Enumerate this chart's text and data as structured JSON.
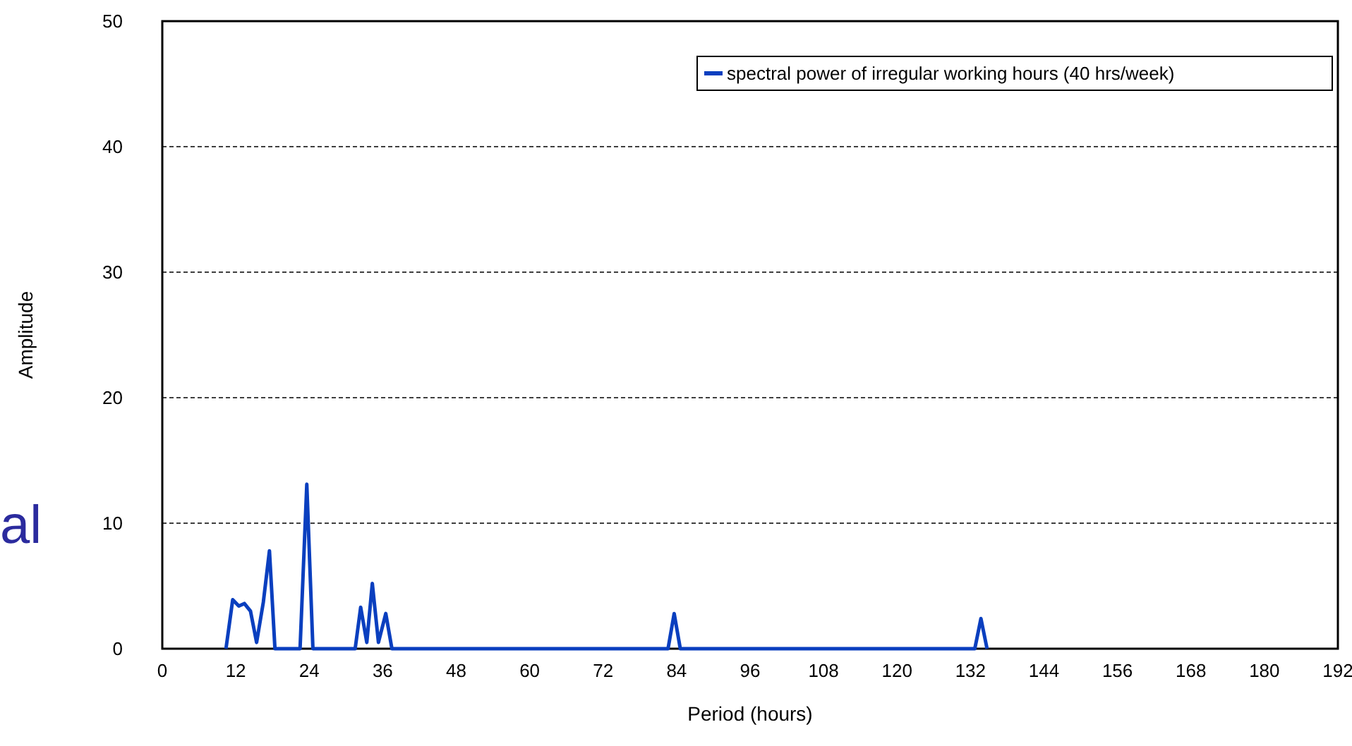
{
  "chart_data": {
    "type": "line",
    "xlabel": "Period (hours)",
    "ylabel": "Amplitude",
    "annotations": [
      "al"
    ],
    "xlim": [
      0,
      192
    ],
    "xticks": [
      0,
      12,
      24,
      36,
      48,
      60,
      72,
      84,
      96,
      108,
      120,
      132,
      144,
      156,
      168,
      180,
      192
    ],
    "ylim": [
      0,
      50
    ],
    "yticks": [
      0,
      10,
      20,
      30,
      40,
      50
    ],
    "grid": "y",
    "legend": "top right",
    "marker": "none",
    "line_style": "solid",
    "series": [
      {
        "name": "spectral power of irregular working hours (40 hrs/week)",
        "color": "#0a3fbf",
        "x": [
          10.4,
          11.5,
          12.5,
          13.4,
          14.4,
          15.4,
          16.5,
          17.5,
          18.4,
          22.5,
          23.6,
          24.6,
          31.5,
          32.4,
          33.4,
          34.3,
          35.3,
          36.5,
          37.5,
          82.6,
          83.6,
          84.6,
          132.7,
          133.7,
          134.7
        ],
        "values": [
          0,
          3.9,
          3.4,
          3.6,
          3.0,
          0.5,
          3.7,
          7.8,
          0,
          0,
          13.1,
          0,
          0,
          3.3,
          0.5,
          5.2,
          0.5,
          2.8,
          0,
          0,
          2.8,
          0,
          0,
          2.4,
          0
        ]
      }
    ]
  }
}
